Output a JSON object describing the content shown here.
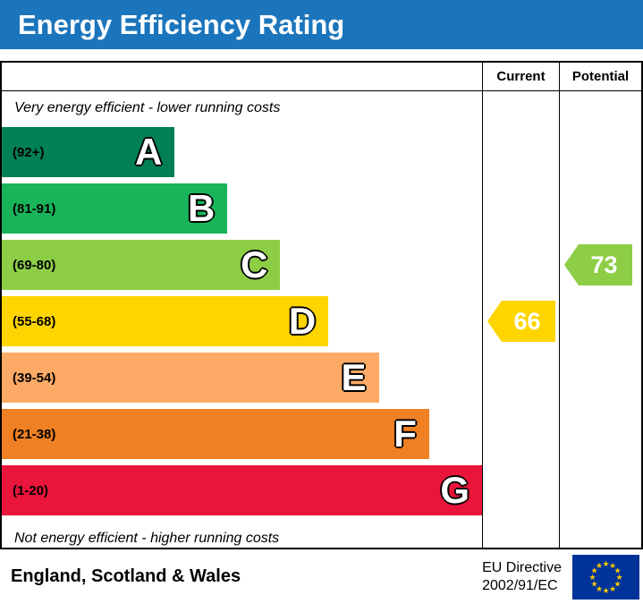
{
  "title": "Energy Efficiency Rating",
  "header": {
    "current": "Current",
    "potential": "Potential"
  },
  "notes": {
    "top": "Very energy efficient - lower running costs",
    "bottom": "Not energy efficient - higher running costs"
  },
  "bands": [
    {
      "letter": "A",
      "range": "(92+)",
      "color": "#008054",
      "width_pct": 36
    },
    {
      "letter": "B",
      "range": "(81-91)",
      "color": "#19b459",
      "width_pct": 47
    },
    {
      "letter": "C",
      "range": "(69-80)",
      "color": "#8dce46",
      "width_pct": 58
    },
    {
      "letter": "D",
      "range": "(55-68)",
      "color": "#ffd500",
      "width_pct": 68
    },
    {
      "letter": "E",
      "range": "(39-54)",
      "color": "#fcaa65",
      "width_pct": 78.5
    },
    {
      "letter": "F",
      "range": "(21-38)",
      "color": "#ef8023",
      "width_pct": 89
    },
    {
      "letter": "G",
      "range": "(1-20)",
      "color": "#e9153b",
      "width_pct": 100
    }
  ],
  "current": {
    "value": "66",
    "band": "D",
    "color": "#ffd500"
  },
  "potential": {
    "value": "73",
    "band": "C",
    "color": "#8dce46"
  },
  "footer": {
    "region": "England, Scotland & Wales",
    "directive_line1": "EU Directive",
    "directive_line2": "2002/91/EC",
    "flag_bg": "#003399",
    "flag_star": "#ffcc00"
  },
  "chart_data": {
    "type": "bar",
    "title": "Energy Efficiency Rating",
    "categories": [
      "A",
      "B",
      "C",
      "D",
      "E",
      "F",
      "G"
    ],
    "band_ranges": [
      "92+",
      "81-91",
      "69-80",
      "55-68",
      "39-54",
      "21-38",
      "1-20"
    ],
    "values": [
      36,
      47,
      58,
      68,
      78.5,
      89,
      100
    ],
    "values_note": "bar length as percent of plot width",
    "colors": [
      "#008054",
      "#19b459",
      "#8dce46",
      "#ffd500",
      "#fcaa65",
      "#ef8023",
      "#e9153b"
    ],
    "current_rating": 66,
    "current_band": "D",
    "potential_rating": 73,
    "potential_band": "C",
    "annotations": [
      "Very energy efficient - lower running costs",
      "Not energy efficient - higher running costs"
    ],
    "columns": [
      "Current",
      "Potential"
    ],
    "footer_region": "England, Scotland & Wales",
    "footer_directive": "EU Directive 2002/91/EC",
    "legend_position": "none",
    "grid": false
  }
}
